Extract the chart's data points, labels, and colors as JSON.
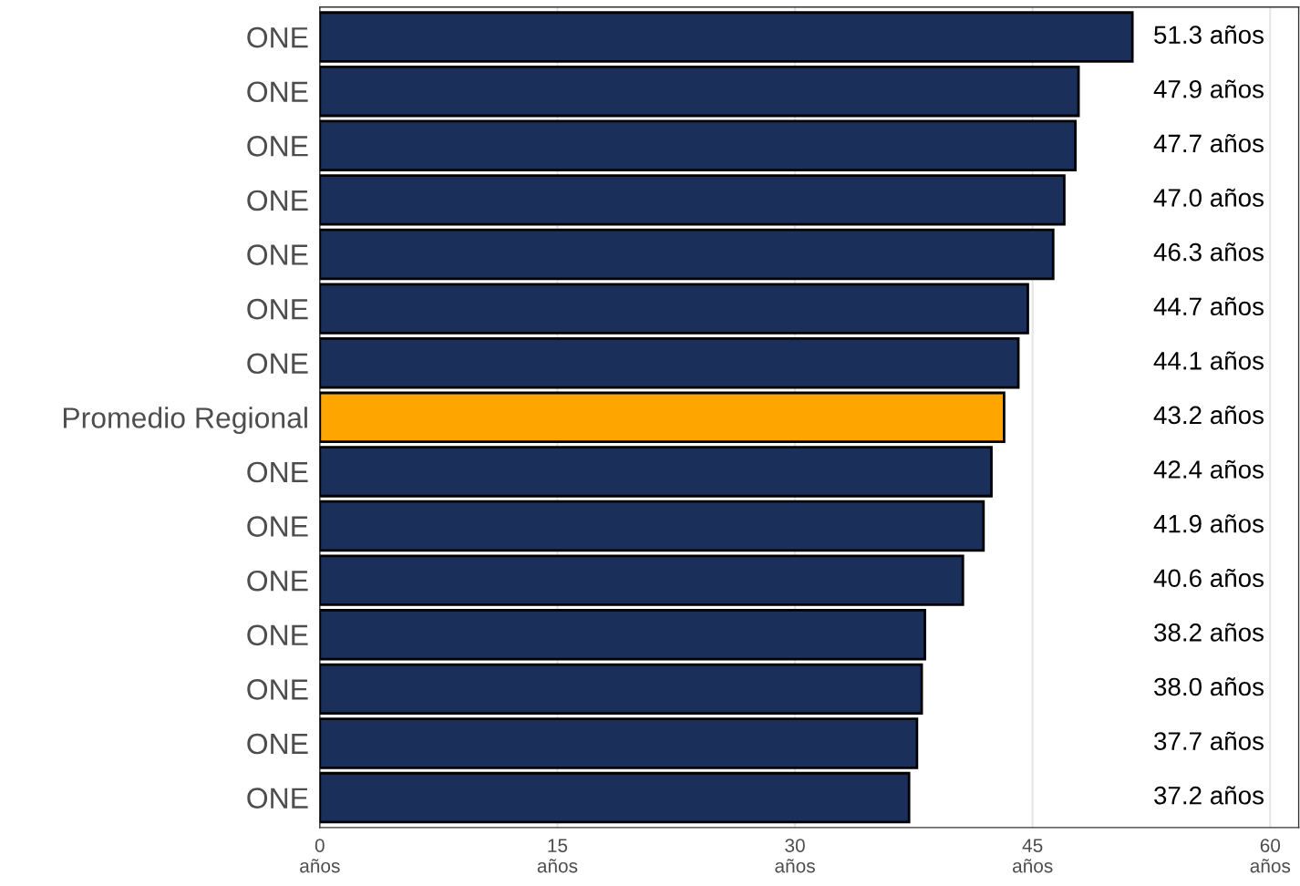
{
  "chart_data": {
    "type": "bar",
    "orientation": "horizontal",
    "categories": [
      "ONE",
      "ONE",
      "ONE",
      "ONE",
      "ONE",
      "ONE",
      "ONE",
      "Promedio Regional",
      "ONE",
      "ONE",
      "ONE",
      "ONE",
      "ONE",
      "ONE",
      "ONE"
    ],
    "values": [
      51.3,
      47.9,
      47.7,
      47.0,
      46.3,
      44.7,
      44.1,
      43.2,
      42.4,
      41.9,
      40.6,
      38.2,
      38.0,
      37.7,
      37.2
    ],
    "colors": [
      "#1b2f5b",
      "#1b2f5b",
      "#1b2f5b",
      "#1b2f5b",
      "#1b2f5b",
      "#1b2f5b",
      "#1b2f5b",
      "#ffa500",
      "#1b2f5b",
      "#1b2f5b",
      "#1b2f5b",
      "#1b2f5b",
      "#1b2f5b",
      "#1b2f5b",
      "#1b2f5b"
    ],
    "value_labels": [
      "51.3 años",
      "47.9 años",
      "47.7 años",
      "47.0 años",
      "46.3 años",
      "44.7 años",
      "44.1 años",
      "43.2 años",
      "42.4 años",
      "41.9 años",
      "40.6 años",
      "38.2 años",
      "38.0 años",
      "37.7 años",
      "37.2 años"
    ],
    "xlim": [
      0,
      61.8
    ],
    "xticks": [
      {
        "value": 0,
        "label": "0\naños"
      },
      {
        "value": 15,
        "label": "15\naños"
      },
      {
        "value": 30,
        "label": "30\naños"
      },
      {
        "value": 45,
        "label": "45\naños"
      },
      {
        "value": 60,
        "label": "60\naños"
      }
    ],
    "grid": "x"
  }
}
